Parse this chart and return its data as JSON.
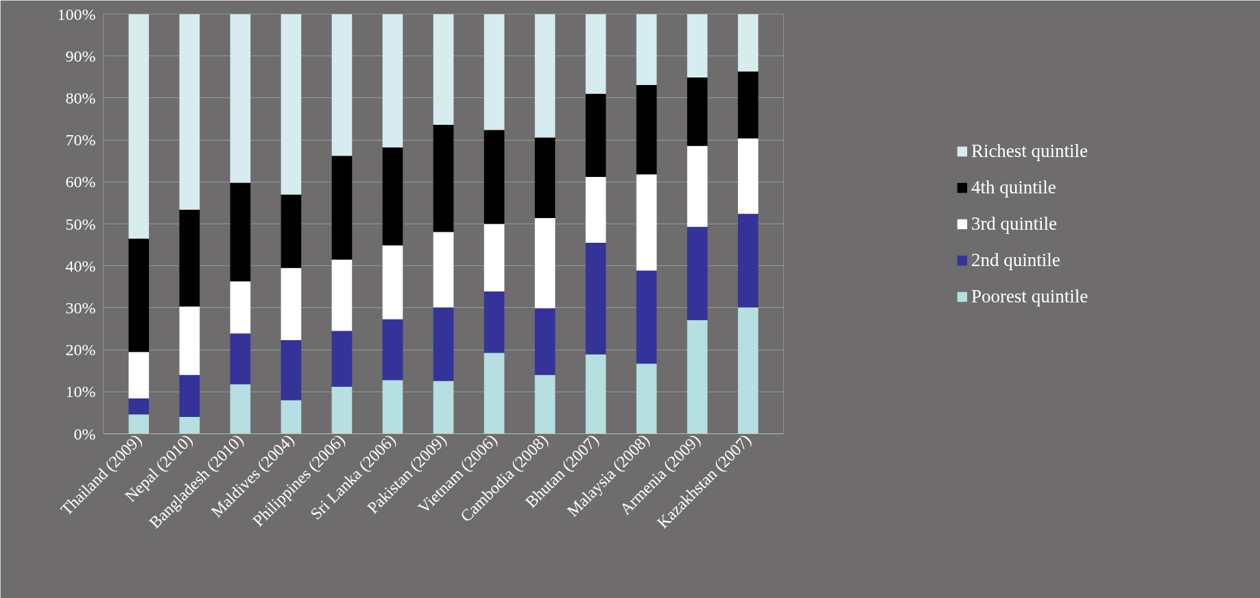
{
  "chart_data": {
    "type": "bar",
    "stacked": true,
    "categories": [
      "Thailand (2009)",
      "Nepal (2010)",
      "Bangladesh (2010)",
      "Maldives (2004)",
      "Philippines (2006)",
      "Sri Lanka (2006)",
      "Pakistan (2009)",
      "Vietnam (2006)",
      "Cambodia (2008)",
      "Bhutan (2007)",
      "Malaysia (2008)",
      "Armenia (2009)",
      "Kazakhstan (2007)"
    ],
    "series": [
      {
        "name": "Poorest quintile",
        "color": "#b5dfe0",
        "values": [
          4.6,
          4.0,
          11.8,
          8.0,
          11.2,
          12.8,
          12.6,
          19.3,
          14.0,
          18.9,
          16.7,
          27.1,
          30.1
        ]
      },
      {
        "name": "2nd quintile",
        "color": "#343399",
        "values": [
          3.8,
          10.0,
          12.1,
          14.3,
          13.3,
          14.5,
          17.5,
          14.6,
          15.9,
          26.6,
          22.2,
          22.2,
          22.3
        ]
      },
      {
        "name": "3rd quintile",
        "color": "#ffffff",
        "values": [
          11.1,
          16.3,
          12.4,
          17.2,
          17.0,
          17.6,
          18.0,
          16.1,
          21.5,
          15.7,
          22.9,
          19.3,
          18.0
        ]
      },
      {
        "name": "4th quintile",
        "color": "#000000",
        "values": [
          27.0,
          23.1,
          23.5,
          17.5,
          24.7,
          23.3,
          25.5,
          22.4,
          19.2,
          19.8,
          21.3,
          16.3,
          15.9
        ]
      },
      {
        "name": "Richest quintile",
        "color": "#d6ecee",
        "values": [
          53.5,
          46.6,
          40.2,
          43.0,
          33.8,
          31.8,
          26.4,
          27.6,
          29.4,
          19.0,
          16.9,
          15.1,
          13.7
        ]
      }
    ],
    "ylim": [
      0,
      100
    ],
    "yticks": [
      {
        "value": 0,
        "label": "0%"
      },
      {
        "value": 10,
        "label": "10%"
      },
      {
        "value": 20,
        "label": "20%"
      },
      {
        "value": 30,
        "label": "30%"
      },
      {
        "value": 40,
        "label": "40%"
      },
      {
        "value": 50,
        "label": "50%"
      },
      {
        "value": 60,
        "label": "60%"
      },
      {
        "value": 70,
        "label": "70%"
      },
      {
        "value": 80,
        "label": "80%"
      },
      {
        "value": 90,
        "label": "90%"
      },
      {
        "value": 100,
        "label": "100%"
      }
    ],
    "grid": "y",
    "legend": "right"
  }
}
